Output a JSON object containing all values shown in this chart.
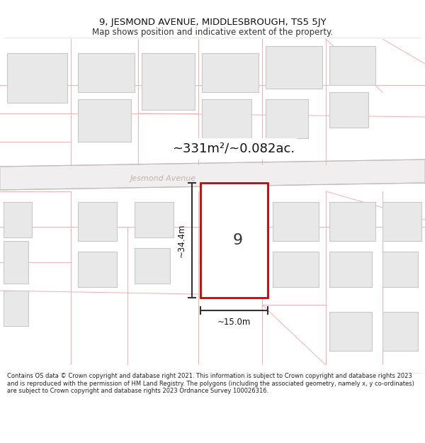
{
  "title_line1": "9, JESMOND AVENUE, MIDDLESBROUGH, TS5 5JY",
  "title_line2": "Map shows position and indicative extent of the property.",
  "area_text": "~331m²/~0.082ac.",
  "street_label": "Jesmond Avenue",
  "plot_number": "9",
  "dim_height": "~34.4m",
  "dim_width": "~15.0m",
  "footer_text": "Contains OS data © Crown copyright and database right 2021. This information is subject to Crown copyright and database rights 2023 and is reproduced with the permission of HM Land Registry. The polygons (including the associated geometry, namely x, y co-ordinates) are subject to Crown copyright and database rights 2023 Ordnance Survey 100026316.",
  "bg_color": "#ffffff",
  "map_bg": "#ffffff",
  "plot_fill": "#ffffff",
  "plot_stroke": "#cc0000",
  "dim_line_color": "#333333",
  "building_fill": "#e8e8e8",
  "building_stroke": "#c8c8c8",
  "road_fill": "#f5f5f5",
  "road_stroke": "#cccccc",
  "boundary_color": "#f0b0b0",
  "street_label_color": "#c0b0b0",
  "area_bg": "#ffffff"
}
